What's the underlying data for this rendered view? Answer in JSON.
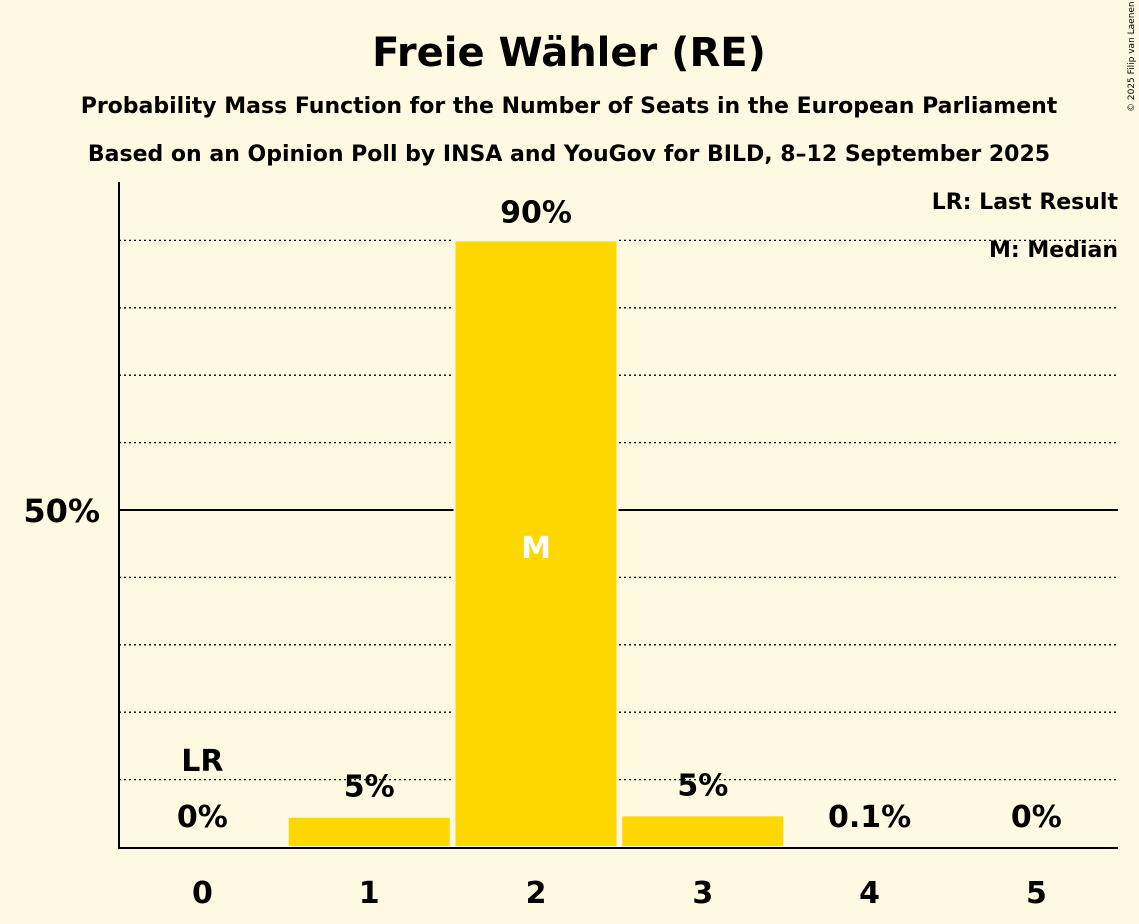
{
  "chart_data": {
    "type": "bar",
    "title": "Freie Wähler (RE)",
    "subtitle1": "Probability Mass Function for the Number of Seats in the European Parliament",
    "subtitle2": "Based on an Opinion Poll by INSA and YouGov for BILD, 8–12 September 2025",
    "categories": [
      "0",
      "1",
      "2",
      "3",
      "4",
      "5"
    ],
    "values": [
      0,
      4.5,
      90,
      4.7,
      0.1,
      0
    ],
    "value_labels": [
      "0%",
      "5%",
      "90%",
      "5%",
      "0.1%",
      "0%"
    ],
    "ylim": [
      0,
      100
    ],
    "ytick_labels": [
      {
        "value": 50,
        "label": "50%"
      }
    ],
    "grid": "dotted every 10%",
    "last_result_index": 0,
    "median_index": 2,
    "lr_marker": "LR",
    "median_marker": "M",
    "legend": [
      "LR: Last Result",
      "M: Median"
    ],
    "legend_position": "top-right",
    "bar_color": "#ffd700",
    "copyright": "© 2025 Filip van Laenen"
  }
}
